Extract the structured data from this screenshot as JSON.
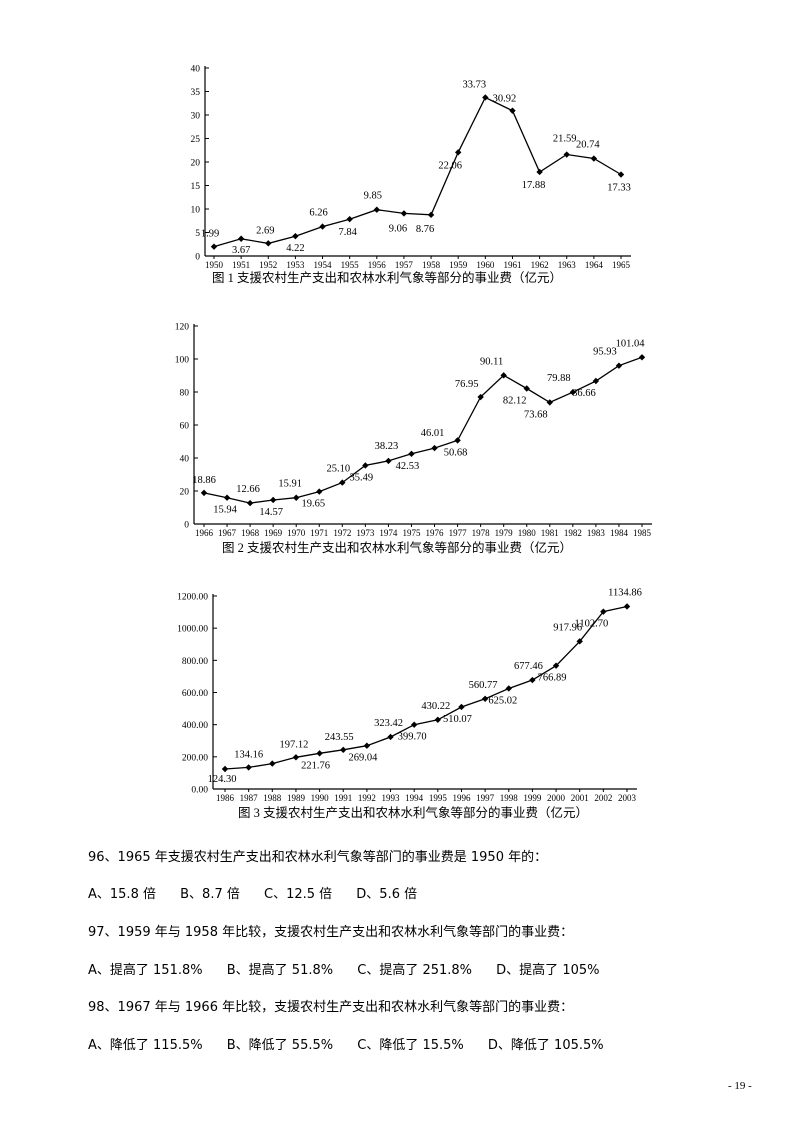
{
  "chart_data": [
    {
      "type": "line",
      "caption": "图 1   支援农村生产支出和农林水利气象等部分的事业费（亿元）",
      "x": [
        "1950",
        "1951",
        "1952",
        "1953",
        "1954",
        "1955",
        "1956",
        "1957",
        "1958",
        "1959",
        "1960",
        "1961",
        "1962",
        "1963",
        "1964",
        "1965"
      ],
      "values": [
        1.99,
        3.67,
        2.69,
        4.22,
        6.26,
        7.84,
        9.85,
        9.06,
        8.76,
        22.06,
        33.73,
        30.92,
        17.88,
        21.59,
        20.74,
        17.33
      ],
      "labels": [
        "1.99",
        "3.67",
        "2.69",
        "4.22",
        "6.26",
        "7.84",
        "9.85",
        "9.06",
        "8.76",
        "22.06",
        "33.73",
        "30.92",
        "17.88",
        "21.59",
        "20.74",
        "17.33"
      ],
      "yticks": [
        "0",
        "5",
        "10",
        "15",
        "20",
        "25",
        "30",
        "35",
        "40"
      ],
      "ylim": [
        0,
        40
      ]
    },
    {
      "type": "line",
      "caption": "图 2   支援农村生产支出和农林水利气象等部分的事业费（亿元）",
      "x": [
        "1966",
        "1967",
        "1968",
        "1969",
        "1970",
        "1971",
        "1972",
        "1973",
        "1974",
        "1975",
        "1976",
        "1977",
        "1978",
        "1979",
        "1980",
        "1981",
        "1982",
        "1983",
        "1984",
        "1985"
      ],
      "values": [
        18.86,
        15.94,
        12.66,
        14.57,
        15.91,
        19.65,
        25.1,
        35.49,
        38.23,
        42.53,
        46.01,
        50.68,
        76.95,
        90.11,
        82.12,
        73.68,
        79.88,
        86.66,
        95.93,
        101.04
      ],
      "labels": [
        "18.86",
        "15.94",
        "12.66",
        "14.57",
        "15.91",
        "19.65",
        "25.10",
        "35.49",
        "38.23",
        "42.53",
        "46.01",
        "50.68",
        "76.95",
        "90.11",
        "82.12",
        "73.68",
        "79.88",
        "86.66",
        "95.93",
        "101.04"
      ],
      "yticks": [
        "0",
        "20",
        "40",
        "60",
        "80",
        "100",
        "120"
      ],
      "ylim": [
        0,
        120
      ]
    },
    {
      "type": "line",
      "caption": "图 3   支援农村生产支出和农林水利气象等部分的事业费（亿元）",
      "x": [
        "1986",
        "1987",
        "1988",
        "1989",
        "1990",
        "1991",
        "1992",
        "1993",
        "1994",
        "1995",
        "1996",
        "1997",
        "1998",
        "1999",
        "2000",
        "2001",
        "2002",
        "2003"
      ],
      "values": [
        124.3,
        134.16,
        158.0,
        197.12,
        221.76,
        243.55,
        269.04,
        323.42,
        399.7,
        430.22,
        510.07,
        560.77,
        625.02,
        677.46,
        766.89,
        917.96,
        1102.7,
        1134.86
      ],
      "labels": [
        "124.30",
        "134.16",
        "",
        "197.12",
        "221.76",
        "243.55",
        "269.04",
        "323.42",
        "399.70",
        "430.22",
        "510.07",
        "560.77",
        "625.02",
        "677.46",
        "766.89",
        "917.96",
        "1102.70",
        "1134.86"
      ],
      "yticks": [
        "0.00",
        "200.00",
        "400.00",
        "600.00",
        "800.00",
        "1000.00",
        "1200.00"
      ],
      "ylim": [
        0,
        1200
      ]
    }
  ],
  "questions": [
    {
      "stem": "96、1965 年支援农村生产支出和农林水利气象等部门的事业费是 1950 年的：",
      "options": [
        "A、15.8 倍",
        "B、8.7 倍",
        "C、12.5 倍",
        "D、5.6 倍"
      ]
    },
    {
      "stem": "97、1959 年与 1958 年比较，支援农村生产支出和农林水利气象等部门的事业费：",
      "options": [
        "A、提高了 151.8%",
        "B、提高了 51.8%",
        "C、提高了 251.8%",
        "D、提高了 105%"
      ]
    },
    {
      "stem": "98、1967 年与 1966 年比较，支援农村生产支出和农林水利气象等部门的事业费：",
      "options": [
        "A、降低了 115.5%",
        "B、降低了 55.5%",
        "C、降低了 15.5%",
        "D、降低了 105.5%"
      ]
    }
  ],
  "page_number": "- 19 -"
}
